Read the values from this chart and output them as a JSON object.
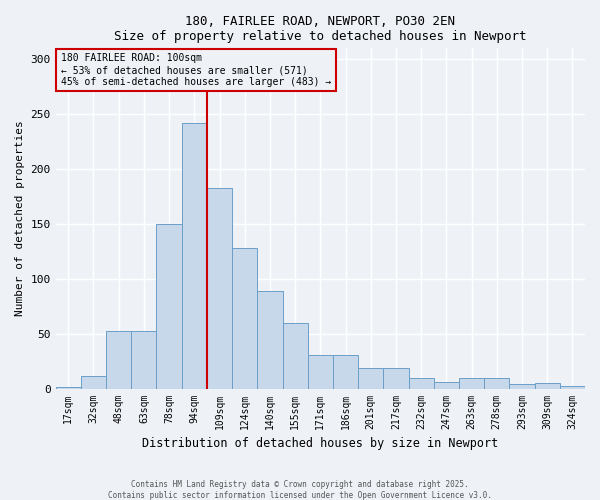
{
  "title1": "180, FAIRLEE ROAD, NEWPORT, PO30 2EN",
  "title2": "Size of property relative to detached houses in Newport",
  "xlabel": "Distribution of detached houses by size in Newport",
  "ylabel": "Number of detached properties",
  "categories": [
    "17sqm",
    "32sqm",
    "48sqm",
    "63sqm",
    "78sqm",
    "94sqm",
    "109sqm",
    "124sqm",
    "140sqm",
    "155sqm",
    "171sqm",
    "186sqm",
    "201sqm",
    "217sqm",
    "232sqm",
    "247sqm",
    "263sqm",
    "278sqm",
    "293sqm",
    "309sqm",
    "324sqm"
  ],
  "values": [
    1,
    11,
    52,
    52,
    150,
    242,
    183,
    128,
    89,
    60,
    31,
    31,
    19,
    19,
    10,
    6,
    10,
    10,
    4,
    5,
    2
  ],
  "bar_color": "#c8d8eb",
  "bar_edge_color": "#6a9fc8",
  "background_color": "#eef2f7",
  "grid_color": "#ffffff",
  "annotation_box_color": "#cc0000",
  "annotation_text": "180 FAIRLEE ROAD: 100sqm\n← 53% of detached houses are smaller (571)\n45% of semi-detached houses are larger (483) →",
  "vline_index": 5.5,
  "ylim": [
    0,
    310
  ],
  "yticks": [
    0,
    50,
    100,
    150,
    200,
    250,
    300
  ],
  "footer1": "Contains HM Land Registry data © Crown copyright and database right 2025.",
  "footer2": "Contains public sector information licensed under the Open Government Licence v3.0."
}
